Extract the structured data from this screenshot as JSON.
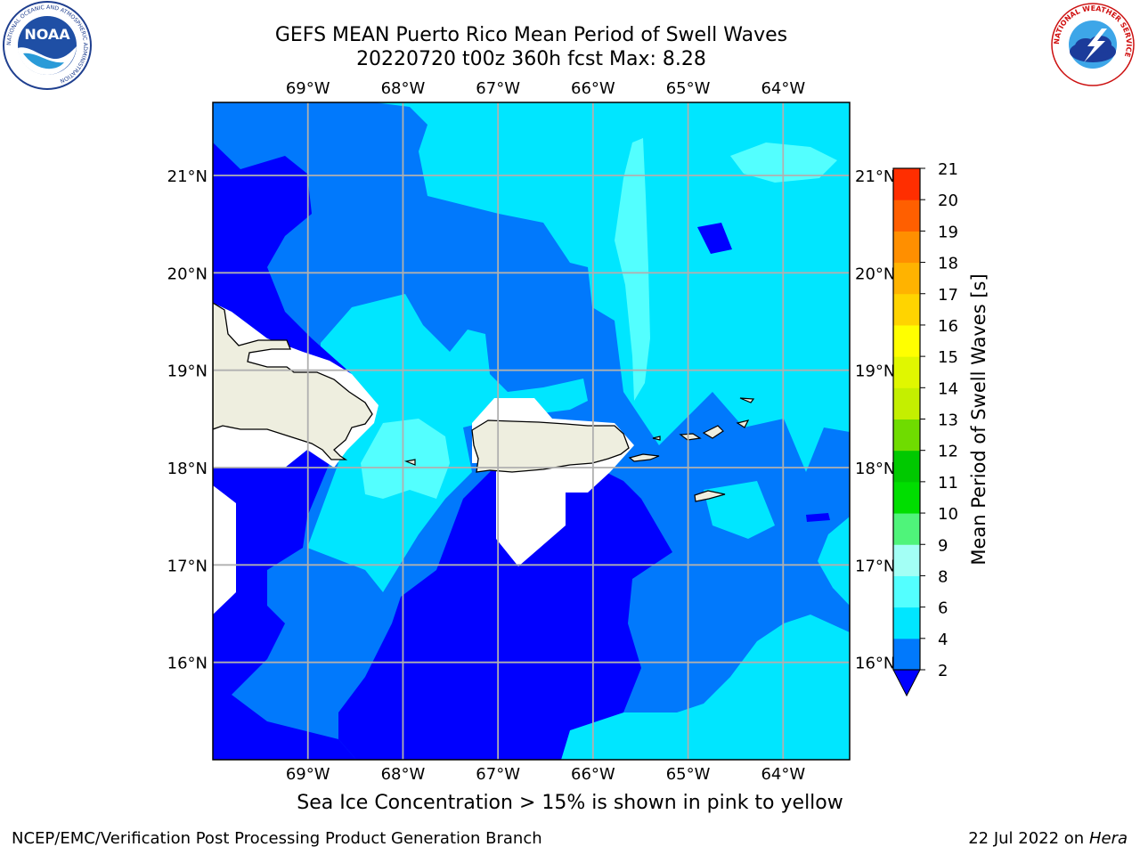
{
  "title": {
    "line1": "GEFS MEAN Puerto Rico Mean Period of Swell Waves",
    "line2": "20220720 t00z 360h fcst   Max: 8.28"
  },
  "map": {
    "lon_labels": [
      "69°W",
      "68°W",
      "67°W",
      "66°W",
      "65°W",
      "64°W"
    ],
    "lat_labels": [
      "21°N",
      "20°N",
      "19°N",
      "18°N",
      "17°N",
      "16°N"
    ],
    "extent": {
      "lon_min": -70.0,
      "lon_max": -63.3,
      "lat_min": 15.0,
      "lat_max": 21.75
    }
  },
  "colorbar": {
    "label": "Mean Period of Swell Waves [s]",
    "ticks": [
      "2",
      "4",
      "6",
      "8",
      "9",
      "10",
      "11",
      "12",
      "13",
      "14",
      "15",
      "16",
      "17",
      "18",
      "19",
      "20",
      "21"
    ],
    "colors": [
      "#0179fc",
      "#00e6ff",
      "#53ffff",
      "#a3fff5",
      "#4ff47a",
      "#00de00",
      "#00c900",
      "#6fdc00",
      "#c4ef00",
      "#e0f700",
      "#ffff00",
      "#ffd400",
      "#ffb300",
      "#ff8f00",
      "#ff5f00",
      "#ff2e00"
    ],
    "under_color": "#0000ff"
  },
  "field_colors": {
    "lt2": "#0000ff",
    "p2_4": "#0179fc",
    "p4_6": "#00e6ff",
    "p6_8": "#53ffff",
    "p8_9": "#a3fff5",
    "land": "#eeeedf",
    "masked": "#ffffff",
    "grid": "#b0b0b0"
  },
  "note": "Sea Ice Concentration > 15% is shown in pink to yellow",
  "footer": {
    "left": "NCEP/EMC/Verification Post Processing Product Generation Branch",
    "date": "22 Jul 2022 on ",
    "host": "Hera"
  },
  "logos": {
    "noaa_text": "NOAA",
    "noaa_ring": "NATIONAL OCEANIC AND ATMOSPHERIC ADMINISTRATION",
    "nws_ring": "NATIONAL WEATHER SERVICE"
  }
}
